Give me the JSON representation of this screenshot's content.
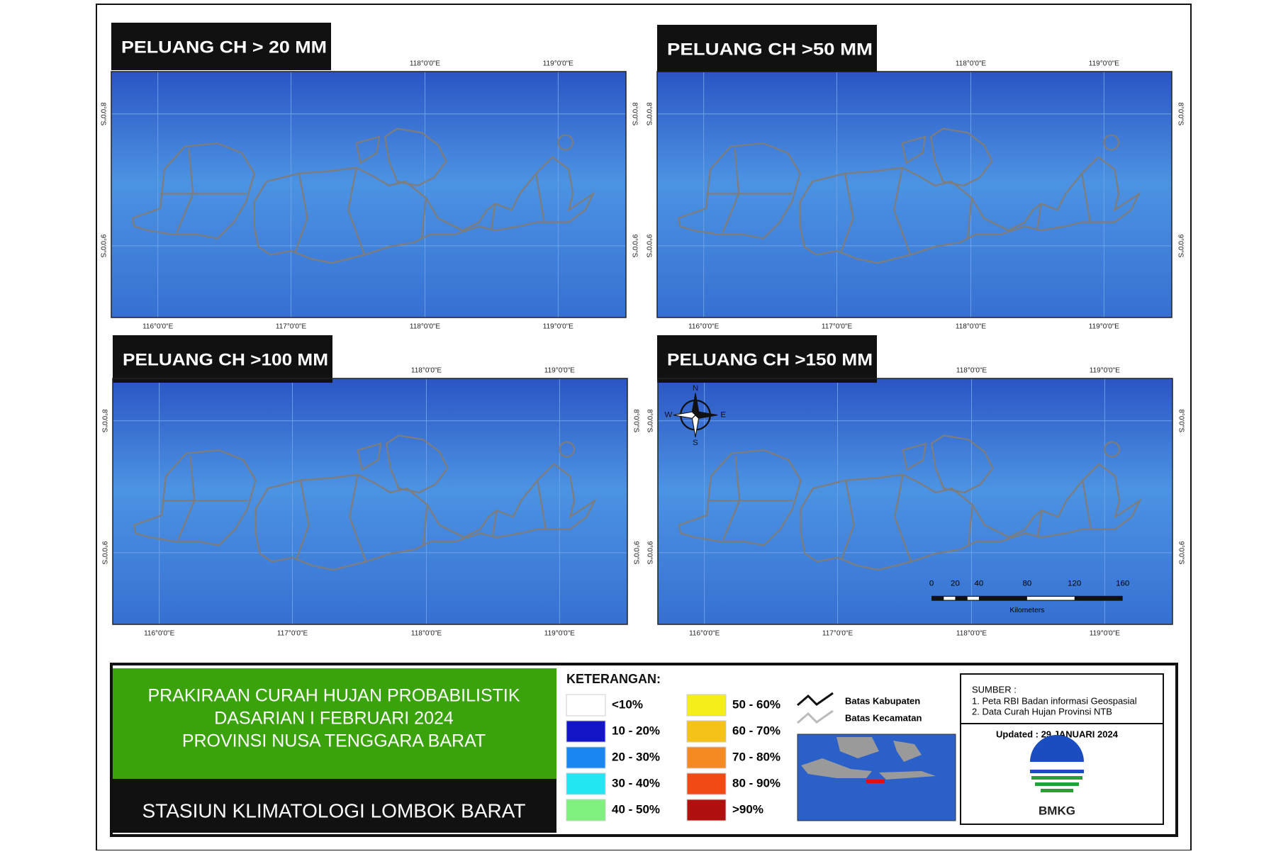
{
  "panels": [
    {
      "title": "PELUANG CH > 20 MM"
    },
    {
      "title": "PELUANG CH >50 MM"
    },
    {
      "title": "PELUANG CH >100 MM"
    },
    {
      "title": "PELUANG CH >150 MM"
    }
  ],
  "coordinates": {
    "lon_top": [
      "118°0'0\"E",
      "119°0'0\"E"
    ],
    "lon_bottom": [
      "116°0'0\"E",
      "117°0'0\"E",
      "118°0'0\"E",
      "119°0'0\"E"
    ],
    "lat": [
      "8°0'0\"S",
      "9°0'0\"S"
    ]
  },
  "compass": {
    "n": "N",
    "s": "S",
    "e": "E",
    "w": "W"
  },
  "scale_bar": {
    "labels": [
      "0",
      "20",
      "40",
      "80",
      "120",
      "160"
    ],
    "unit": "Kilometers"
  },
  "title_block": {
    "lines": [
      "PRAKIRAAN CURAH HUJAN PROBABILISTIK",
      "DASARIAN  I FEBRUARI 2024",
      "PROVINSI NUSA TENGGARA BARAT"
    ],
    "station": "STASIUN KLIMATOLOGI LOMBOK BARAT"
  },
  "legend": {
    "title": "KETERANGAN:",
    "items": [
      {
        "label": "<10%",
        "color": "#ffffff"
      },
      {
        "label": "10 - 20%",
        "color": "#1414c8"
      },
      {
        "label": "20 - 30%",
        "color": "#1a86f0"
      },
      {
        "label": "30 - 40%",
        "color": "#22e6f2"
      },
      {
        "label": "40 - 50%",
        "color": "#80f07e"
      },
      {
        "label": "50 - 60%",
        "color": "#f6ee1a"
      },
      {
        "label": "60 - 70%",
        "color": "#f5c318"
      },
      {
        "label": "70 - 80%",
        "color": "#f58a22"
      },
      {
        "label": "80 - 90%",
        "color": "#f24a14"
      },
      {
        "label": ">90%",
        "color": "#b0100e"
      }
    ],
    "lines": [
      "Batas Kabupaten",
      "Batas Kecamatan"
    ]
  },
  "source": {
    "title": "SUMBER :",
    "items": [
      "1. Peta RBI Badan informasi Geospasial",
      "2. Data Curah Hujan Provinsi NTB"
    ],
    "updated": "Updated : 29 JANUARI 2024",
    "logo": "BMKG"
  }
}
